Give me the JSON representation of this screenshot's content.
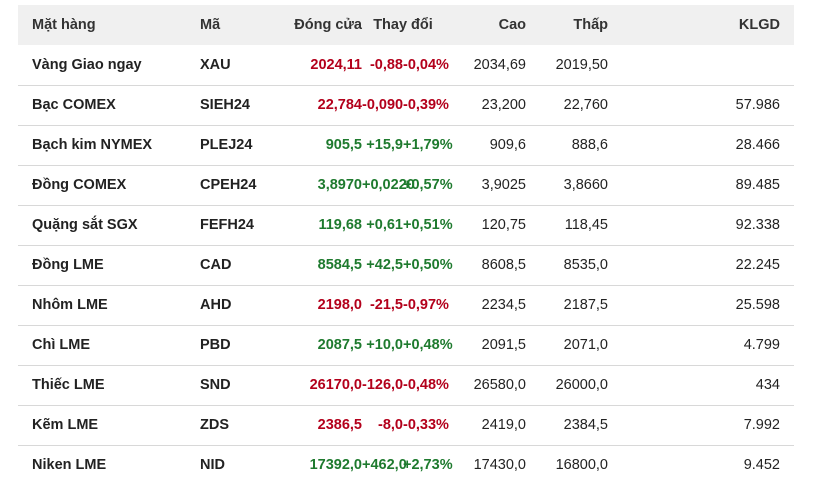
{
  "colors": {
    "negative": "#b3001b",
    "positive": "#1e7a2e",
    "header_bg": "#f0f0f0"
  },
  "table": {
    "headers": {
      "name": "Mặt hàng",
      "code": "Mã",
      "close": "Đóng cửa",
      "change": "Thay đổi",
      "high": "Cao",
      "low": "Thấp",
      "volume": "KLGD"
    },
    "rows": [
      {
        "name": "Vàng Giao ngay",
        "code": "XAU",
        "close": "2024,11",
        "change": "-0,88",
        "pct": "-0,04%",
        "high": "2034,69",
        "low": "2019,50",
        "volume": "",
        "dir": "neg"
      },
      {
        "name": "Bạc COMEX",
        "code": "SIEH24",
        "close": "22,784",
        "change": "-0,090",
        "pct": "-0,39%",
        "high": "23,200",
        "low": "22,760",
        "volume": "57.986",
        "dir": "neg"
      },
      {
        "name": "Bạch kim NYMEX",
        "code": "PLEJ24",
        "close": "905,5",
        "change": "+15,9",
        "pct": "+1,79%",
        "high": "909,6",
        "low": "888,6",
        "volume": "28.466",
        "dir": "pos"
      },
      {
        "name": "Đồng COMEX",
        "code": "CPEH24",
        "close": "3,8970",
        "change": "+0,0220",
        "pct": "+0,57%",
        "high": "3,9025",
        "low": "3,8660",
        "volume": "89.485",
        "dir": "pos"
      },
      {
        "name": "Quặng sắt SGX",
        "code": "FEFH24",
        "close": "119,68",
        "change": "+0,61",
        "pct": "+0,51%",
        "high": "120,75",
        "low": "118,45",
        "volume": "92.338",
        "dir": "pos"
      },
      {
        "name": "Đồng LME",
        "code": "CAD",
        "close": "8584,5",
        "change": "+42,5",
        "pct": "+0,50%",
        "high": "8608,5",
        "low": "8535,0",
        "volume": "22.245",
        "dir": "pos"
      },
      {
        "name": "Nhôm LME",
        "code": "AHD",
        "close": "2198,0",
        "change": "-21,5",
        "pct": "-0,97%",
        "high": "2234,5",
        "low": "2187,5",
        "volume": "25.598",
        "dir": "neg"
      },
      {
        "name": "Chì LME",
        "code": "PBD",
        "close": "2087,5",
        "change": "+10,0",
        "pct": "+0,48%",
        "high": "2091,5",
        "low": "2071,0",
        "volume": "4.799",
        "dir": "pos"
      },
      {
        "name": "Thiếc LME",
        "code": "SND",
        "close": "26170,0",
        "change": "-126,0",
        "pct": "-0,48%",
        "high": "26580,0",
        "low": "26000,0",
        "volume": "434",
        "dir": "neg"
      },
      {
        "name": "Kẽm LME",
        "code": "ZDS",
        "close": "2386,5",
        "change": "-8,0",
        "pct": "-0,33%",
        "high": "2419,0",
        "low": "2384,5",
        "volume": "7.992",
        "dir": "neg"
      },
      {
        "name": "Niken LME",
        "code": "NID",
        "close": "17392,0",
        "change": "+462,0",
        "pct": "+2,73%",
        "high": "17430,0",
        "low": "16800,0",
        "volume": "9.452",
        "dir": "pos"
      }
    ]
  }
}
